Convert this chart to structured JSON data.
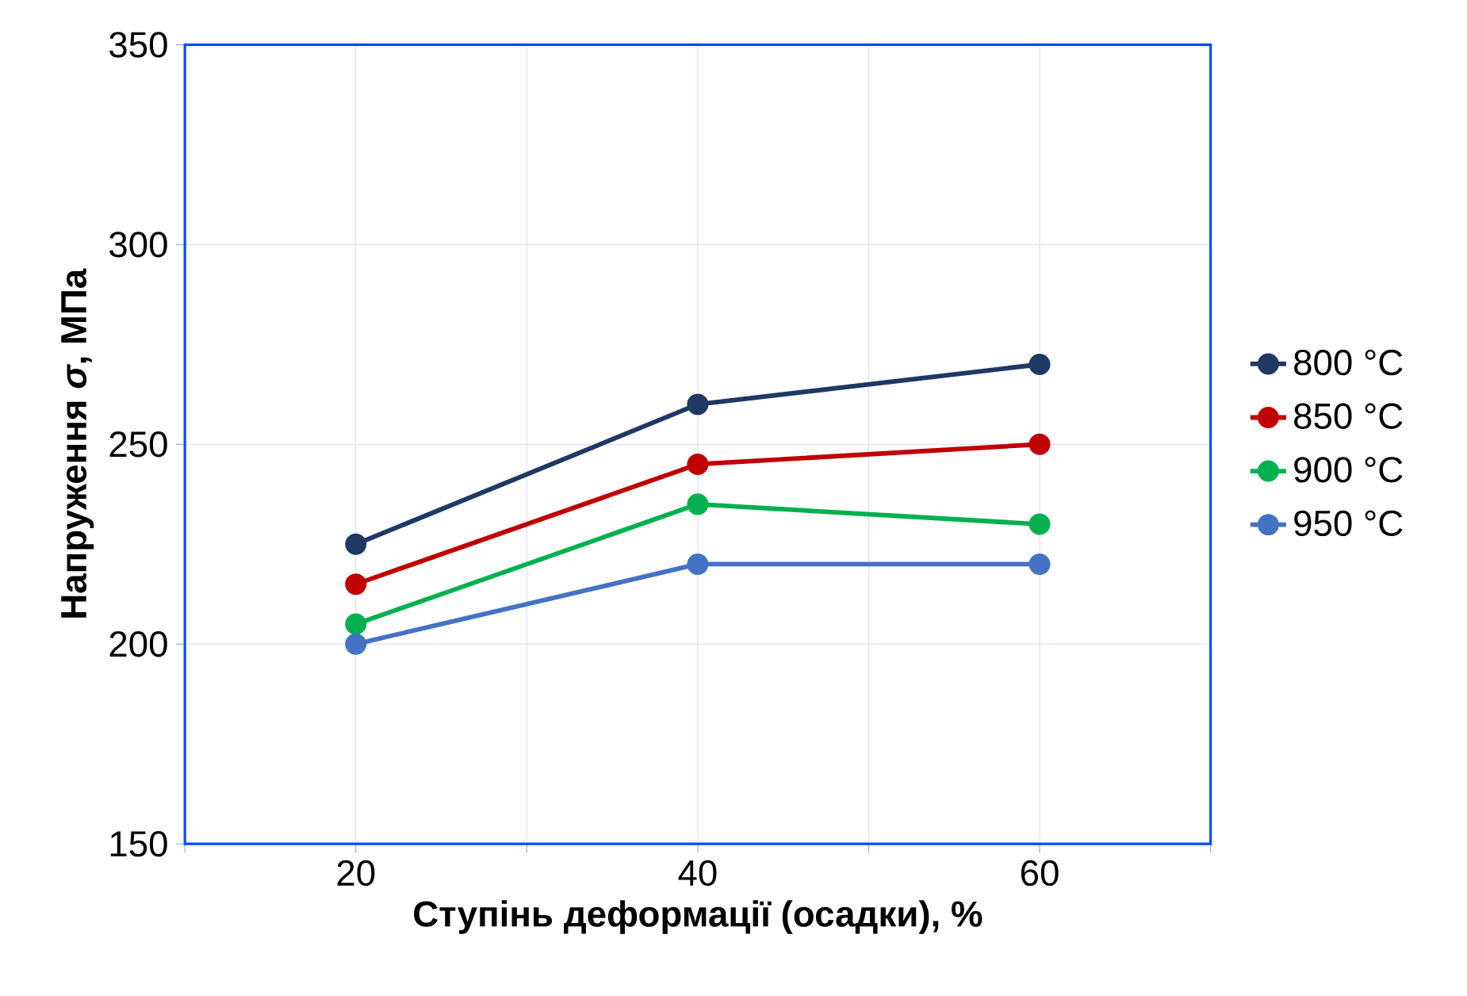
{
  "chart_data": {
    "type": "line",
    "xlabel": "Ступінь деформації (осадки), %",
    "ylabel": "Напруження *σ*, МПа",
    "x": [
      20,
      40,
      60
    ],
    "series": [
      {
        "name": "800 °C",
        "color": "#1f3864",
        "values": [
          225,
          260,
          270
        ]
      },
      {
        "name": "850 °C",
        "color": "#c00000",
        "values": [
          215,
          245,
          250
        ]
      },
      {
        "name": "900 °C",
        "color": "#00b050",
        "values": [
          205,
          235,
          230
        ]
      },
      {
        "name": "950 °C",
        "color": "#4472c4",
        "values": [
          200,
          220,
          220
        ]
      }
    ],
    "xlim": [
      10,
      70
    ],
    "xticks": [
      {
        "value": 10,
        "label": null
      },
      20,
      {
        "value": 30,
        "label": null
      },
      40,
      {
        "value": 50,
        "label": null
      },
      60,
      {
        "value": 70,
        "label": null
      }
    ],
    "ylim": [
      150,
      350
    ],
    "yticks": [
      150,
      200,
      250,
      300,
      350
    ],
    "grid": true,
    "legend": "right",
    "marker": "circle",
    "line_style": "solid"
  }
}
